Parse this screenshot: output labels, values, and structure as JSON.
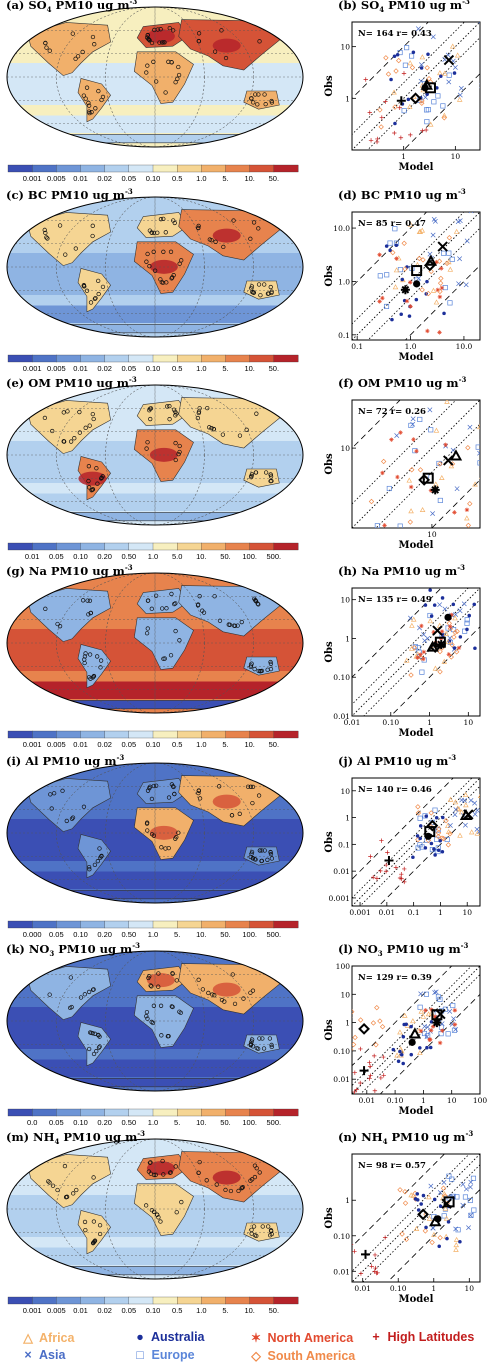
{
  "colors": {
    "scale": [
      "#3b4fb4",
      "#4f73c6",
      "#6e95d6",
      "#8fb4e3",
      "#b2d0ee",
      "#d4e7f6",
      "#f7efbf",
      "#f5d593",
      "#f1b06b",
      "#e7834d",
      "#d55337",
      "#b5232a"
    ],
    "africa": "#f4b26a",
    "asia": "#4a6dc6",
    "australia": "#1c2f9a",
    "europe": "#5b86d9",
    "north_america": "#e24a2f",
    "south_america": "#f08a4a",
    "high_latitudes": "#c21d1d"
  },
  "panels": [
    {
      "map_title": "(a) SO",
      "map_title_sub": "4",
      "map_title_tail": " PM10 ug m",
      "map_title_sup": "-3",
      "colorbar_ticks": [
        "0.001",
        "0.005",
        "0.01",
        "0.02",
        "0.05",
        "0.10",
        "0.5",
        "1.0",
        "5.",
        "10.",
        "50."
      ],
      "map_pattern": "so4",
      "chart_data": {
        "type": "scatter",
        "title": "(b) SO4 PM10 ug m-3",
        "xlabel": "Model",
        "ylabel": "Obs",
        "stats": "N= 164 r= 0.43",
        "scale": "log",
        "xlim": [
          0.1,
          30
        ],
        "ylim": [
          0.1,
          30
        ],
        "x_ticks": [
          "1",
          "10"
        ],
        "y_ticks": [
          "1",
          "10"
        ],
        "regional_means": [
          {
            "region": "Asia",
            "x": 7.5,
            "y": 5.5
          },
          {
            "region": "Europe",
            "x": 3.3,
            "y": 1.6
          },
          {
            "region": "Africa",
            "x": 2.8,
            "y": 1.8
          },
          {
            "region": "South America",
            "x": 1.7,
            "y": 1.0
          },
          {
            "region": "High Latitudes",
            "x": 0.9,
            "y": 0.9
          },
          {
            "region": "Australia",
            "x": 2.6,
            "y": 1.6
          }
        ]
      }
    },
    {
      "map_title": "(c) BC PM10 ug m",
      "map_title_sub": "",
      "map_title_tail": "",
      "map_title_sup": "-3",
      "colorbar_ticks": [
        "0.001",
        "0.005",
        "0.01",
        "0.02",
        "0.05",
        "0.10",
        "0.5",
        "1.0",
        "5.",
        "10.",
        "50."
      ],
      "map_pattern": "bc",
      "chart_data": {
        "type": "scatter",
        "title": "(d) BC PM10 ug m-3",
        "xlabel": "Model",
        "ylabel": "Obs",
        "stats": "N= 85 r= 0.47",
        "scale": "log",
        "xlim": [
          0.08,
          20
        ],
        "ylim": [
          0.08,
          20
        ],
        "x_ticks": [
          "0.1",
          "1.0",
          "10.0"
        ],
        "y_ticks": [
          "0.1",
          "1.0",
          "10.0"
        ],
        "regional_means": [
          {
            "region": "Asia",
            "x": 4.0,
            "y": 4.5
          },
          {
            "region": "Europe",
            "x": 1.3,
            "y": 1.6
          },
          {
            "region": "Africa",
            "x": 2.4,
            "y": 2.4
          },
          {
            "region": "Australia",
            "x": 1.3,
            "y": 0.9
          },
          {
            "region": "North America",
            "x": 0.8,
            "y": 0.7
          },
          {
            "region": "South America",
            "x": 2.3,
            "y": 2.0
          }
        ]
      }
    },
    {
      "map_title": "(e) OM PM10 ug m",
      "map_title_sub": "",
      "map_title_tail": "",
      "map_title_sup": "-3",
      "colorbar_ticks": [
        "0.01",
        "0.05",
        "0.10",
        "0.20",
        "0.50",
        "1.0",
        "5.0",
        "10.",
        "50.",
        "100.",
        "500."
      ],
      "map_pattern": "om",
      "chart_data": {
        "type": "scatter",
        "title": "(f) OM PM10 ug m-3",
        "xlabel": "Model",
        "ylabel": "Obs",
        "stats": "N= 72 r= 0.26",
        "scale": "log",
        "xlim": [
          1,
          40
        ],
        "ylim": [
          1,
          40
        ],
        "x_ticks": [
          "10"
        ],
        "y_ticks": [
          "10"
        ],
        "regional_means": [
          {
            "region": "Asia",
            "x": 16,
            "y": 7
          },
          {
            "region": "Europe",
            "x": 9,
            "y": 4.2
          },
          {
            "region": "Africa",
            "x": 20,
            "y": 8
          },
          {
            "region": "North America",
            "x": 11,
            "y": 3.0
          },
          {
            "region": "South America",
            "x": 8,
            "y": 4
          }
        ]
      }
    },
    {
      "map_title": "(g) Na PM10 ug m",
      "map_title_sub": "",
      "map_title_tail": "",
      "map_title_sup": "-3",
      "colorbar_ticks": [
        "0.001",
        "0.005",
        "0.01",
        "0.02",
        "0.05",
        "0.10",
        "0.5",
        "1.0",
        "5.",
        "10.",
        "50."
      ],
      "map_pattern": "na",
      "chart_data": {
        "type": "scatter",
        "title": "(h) Na PM10 ug m-3",
        "xlabel": "Model",
        "ylabel": "Obs",
        "stats": "N= 135 r= 0.49",
        "scale": "log",
        "xlim": [
          0.01,
          20
        ],
        "ylim": [
          0.01,
          20
        ],
        "x_ticks": [
          "0.01",
          "0.10",
          "1",
          "10"
        ],
        "y_ticks": [
          "0.01",
          "0.10",
          "1",
          "10"
        ],
        "regional_means": [
          {
            "region": "Asia",
            "x": 1.6,
            "y": 1.6
          },
          {
            "region": "Europe",
            "x": 1.9,
            "y": 0.8
          },
          {
            "region": "Australia",
            "x": 3.0,
            "y": 3.5
          },
          {
            "region": "Africa",
            "x": 1.2,
            "y": 0.6
          },
          {
            "region": "South America",
            "x": 1.4,
            "y": 0.6
          },
          {
            "region": "North America",
            "x": 2.0,
            "y": 0.7
          }
        ]
      }
    },
    {
      "map_title": "(i) Al PM10 ug m",
      "map_title_sub": "",
      "map_title_tail": "",
      "map_title_sup": "-3",
      "colorbar_ticks": [
        "0.000",
        "0.05",
        "0.10",
        "0.20",
        "0.50",
        "1.0",
        "5.",
        "10.",
        "50.",
        "100.",
        "500."
      ],
      "map_pattern": "al",
      "chart_data": {
        "type": "scatter",
        "title": "(j) Al PM10 ug m-3",
        "xlabel": "",
        "ylabel": "Obs",
        "stats": "N= 140 r= 0.46",
        "scale": "log",
        "xlim": [
          0.0005,
          30
        ],
        "ylim": [
          0.0005,
          30
        ],
        "x_ticks": [
          "0.001",
          "0.01",
          "0.1",
          "1",
          "10"
        ],
        "y_ticks": [
          "0.001",
          "0.01",
          "0.1",
          "1",
          "10"
        ],
        "regional_means": [
          {
            "region": "Africa",
            "x": 9,
            "y": 1.2
          },
          {
            "region": "Asia",
            "x": 11,
            "y": 1.3
          },
          {
            "region": "Europe",
            "x": 0.4,
            "y": 0.3
          },
          {
            "region": "South America",
            "x": 0.5,
            "y": 0.5
          },
          {
            "region": "Australia",
            "x": 0.35,
            "y": 0.2
          },
          {
            "region": "High Latitudes",
            "x": 0.012,
            "y": 0.025
          }
        ]
      }
    },
    {
      "map_title": "(k) NO",
      "map_title_sub": "3",
      "map_title_tail": " PM10 ug m",
      "map_title_sup": "-3",
      "colorbar_ticks": [
        "0.0",
        "0.05",
        "0.10",
        "0.20",
        "0.50",
        "1.0",
        "5.",
        "10.",
        "50.",
        "100.",
        "500."
      ],
      "map_pattern": "no3",
      "chart_data": {
        "type": "scatter",
        "title": "(l) NO3 PM10 ug m-3",
        "xlabel": "Model",
        "ylabel": "Obs",
        "stats": "N= 129 r= 0.39",
        "scale": "log",
        "xlim": [
          0.003,
          100
        ],
        "ylim": [
          0.003,
          100
        ],
        "x_ticks": [
          "0.01",
          "0.10",
          "1",
          "10",
          "100"
        ],
        "y_ticks": [
          "0.01",
          "0.10",
          "1",
          "10",
          "100"
        ],
        "regional_means": [
          {
            "region": "Europe",
            "x": 3.0,
            "y": 1.9
          },
          {
            "region": "Asia",
            "x": 4.0,
            "y": 2.0
          },
          {
            "region": "Africa",
            "x": 0.5,
            "y": 0.4
          },
          {
            "region": "South America",
            "x": 0.008,
            "y": 0.6
          },
          {
            "region": "High Latitudes",
            "x": 0.008,
            "y": 0.02
          },
          {
            "region": "Australia",
            "x": 0.4,
            "y": 0.2
          },
          {
            "region": "North America",
            "x": 3.0,
            "y": 1.0
          }
        ]
      }
    },
    {
      "map_title": "(m) NH",
      "map_title_sub": "4",
      "map_title_tail": " PM10 ug m",
      "map_title_sup": "-3",
      "colorbar_ticks": [
        "0.001",
        "0.005",
        "0.01",
        "0.02",
        "0.05",
        "0.10",
        "0.5",
        "1.0",
        "5.",
        "10.",
        "50."
      ],
      "map_pattern": "nh4",
      "chart_data": {
        "type": "scatter",
        "title": "(n) NH4 PM10 ug m-3",
        "xlabel": "Model",
        "ylabel": "Obs",
        "stats": "N= 98 r= 0.57",
        "scale": "log",
        "xlim": [
          0.005,
          20
        ],
        "ylim": [
          0.005,
          20
        ],
        "x_ticks": [
          "0.01",
          "0.10",
          "1",
          "10"
        ],
        "y_ticks": [
          "0.01",
          "0.10",
          "1"
        ],
        "regional_means": [
          {
            "region": "Europe",
            "x": 2.7,
            "y": 0.9
          },
          {
            "region": "Asia",
            "x": 2.3,
            "y": 0.8
          },
          {
            "region": "Africa",
            "x": 1.1,
            "y": 0.25
          },
          {
            "region": "South America",
            "x": 0.5,
            "y": 0.4
          },
          {
            "region": "Australia",
            "x": 1.3,
            "y": 0.3
          },
          {
            "region": "High Latitudes",
            "x": 0.012,
            "y": 0.03
          }
        ]
      }
    }
  ],
  "legend": [
    {
      "symbol": "△",
      "label": "Africa",
      "color_key": "africa"
    },
    {
      "symbol": "●",
      "label": "Australia",
      "color_key": "australia"
    },
    {
      "symbol": "✶",
      "label": "North America",
      "color_key": "north_america"
    },
    {
      "symbol": "+",
      "label": "High Latitudes",
      "color_key": "high_latitudes"
    },
    {
      "symbol": "×",
      "label": "Asia",
      "color_key": "asia"
    },
    {
      "symbol": "□",
      "label": "Europe",
      "color_key": "europe"
    },
    {
      "symbol": "◇",
      "label": "South America",
      "color_key": "south_america"
    }
  ]
}
